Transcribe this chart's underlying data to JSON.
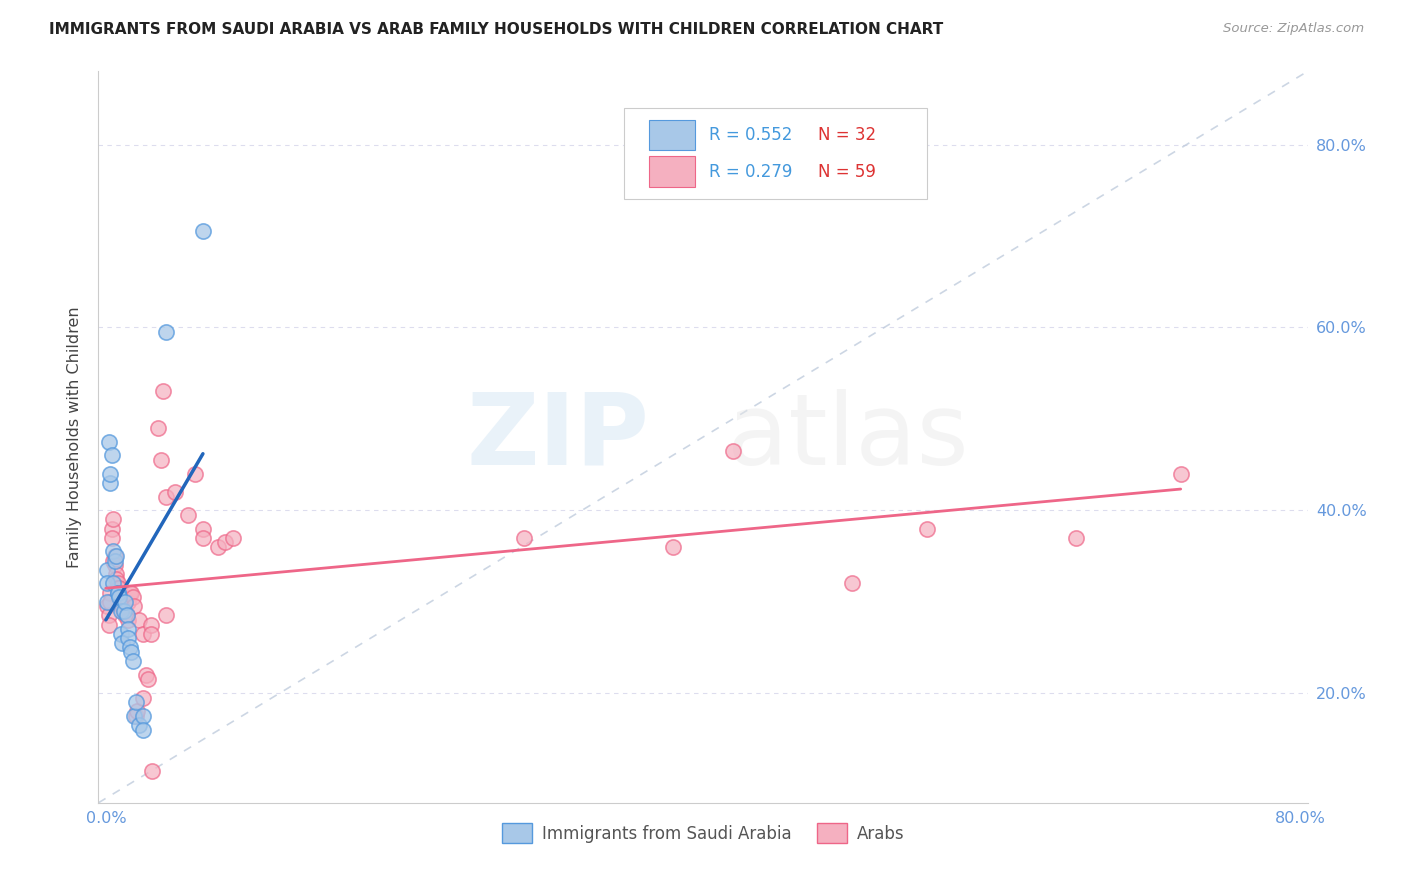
{
  "title": "IMMIGRANTS FROM SAUDI ARABIA VS ARAB FAMILY HOUSEHOLDS WITH CHILDREN CORRELATION CHART",
  "source": "Source: ZipAtlas.com",
  "ylabel": "Family Households with Children",
  "legend_r1": "R = 0.552",
  "legend_n1": "N = 32",
  "legend_r2": "R = 0.279",
  "legend_n2": "N = 59",
  "legend_label1": "Immigrants from Saudi Arabia",
  "legend_label2": "Arabs",
  "blue_fill": "#a8c8e8",
  "pink_fill": "#f5b0c0",
  "blue_edge": "#5599dd",
  "pink_edge": "#ee6688",
  "blue_line": "#2266bb",
  "pink_line": "#ee6688",
  "legend_r_color": "#4499dd",
  "legend_n_color": "#dd3333",
  "blue_scatter": [
    [
      0.001,
      0.335
    ],
    [
      0.001,
      0.32
    ],
    [
      0.001,
      0.3
    ],
    [
      0.002,
      0.475
    ],
    [
      0.003,
      0.43
    ],
    [
      0.003,
      0.44
    ],
    [
      0.004,
      0.46
    ],
    [
      0.005,
      0.355
    ],
    [
      0.005,
      0.32
    ],
    [
      0.006,
      0.345
    ],
    [
      0.007,
      0.35
    ],
    [
      0.008,
      0.31
    ],
    [
      0.008,
      0.31
    ],
    [
      0.009,
      0.305
    ],
    [
      0.01,
      0.29
    ],
    [
      0.01,
      0.265
    ],
    [
      0.011,
      0.255
    ],
    [
      0.012,
      0.29
    ],
    [
      0.013,
      0.3
    ],
    [
      0.014,
      0.285
    ],
    [
      0.015,
      0.27
    ],
    [
      0.015,
      0.26
    ],
    [
      0.016,
      0.25
    ],
    [
      0.017,
      0.245
    ],
    [
      0.018,
      0.235
    ],
    [
      0.019,
      0.175
    ],
    [
      0.02,
      0.19
    ],
    [
      0.022,
      0.165
    ],
    [
      0.025,
      0.175
    ],
    [
      0.025,
      0.16
    ],
    [
      0.04,
      0.595
    ],
    [
      0.065,
      0.705
    ]
  ],
  "pink_scatter": [
    [
      0.001,
      0.295
    ],
    [
      0.002,
      0.285
    ],
    [
      0.002,
      0.275
    ],
    [
      0.003,
      0.31
    ],
    [
      0.003,
      0.3
    ],
    [
      0.004,
      0.38
    ],
    [
      0.004,
      0.37
    ],
    [
      0.005,
      0.39
    ],
    [
      0.005,
      0.345
    ],
    [
      0.006,
      0.35
    ],
    [
      0.006,
      0.34
    ],
    [
      0.007,
      0.33
    ],
    [
      0.007,
      0.325
    ],
    [
      0.008,
      0.32
    ],
    [
      0.008,
      0.315
    ],
    [
      0.009,
      0.315
    ],
    [
      0.009,
      0.31
    ],
    [
      0.01,
      0.305
    ],
    [
      0.01,
      0.3
    ],
    [
      0.011,
      0.295
    ],
    [
      0.012,
      0.29
    ],
    [
      0.013,
      0.285
    ],
    [
      0.014,
      0.285
    ],
    [
      0.015,
      0.3
    ],
    [
      0.015,
      0.28
    ],
    [
      0.016,
      0.31
    ],
    [
      0.017,
      0.31
    ],
    [
      0.018,
      0.305
    ],
    [
      0.019,
      0.295
    ],
    [
      0.02,
      0.175
    ],
    [
      0.021,
      0.18
    ],
    [
      0.022,
      0.28
    ],
    [
      0.025,
      0.265
    ],
    [
      0.025,
      0.195
    ],
    [
      0.027,
      0.22
    ],
    [
      0.028,
      0.215
    ],
    [
      0.03,
      0.275
    ],
    [
      0.03,
      0.265
    ],
    [
      0.031,
      0.115
    ],
    [
      0.035,
      0.49
    ],
    [
      0.037,
      0.455
    ],
    [
      0.038,
      0.53
    ],
    [
      0.04,
      0.415
    ],
    [
      0.04,
      0.285
    ],
    [
      0.046,
      0.42
    ],
    [
      0.055,
      0.395
    ],
    [
      0.06,
      0.44
    ],
    [
      0.065,
      0.38
    ],
    [
      0.065,
      0.37
    ],
    [
      0.075,
      0.36
    ],
    [
      0.08,
      0.365
    ],
    [
      0.085,
      0.37
    ],
    [
      0.28,
      0.37
    ],
    [
      0.38,
      0.36
    ],
    [
      0.42,
      0.465
    ],
    [
      0.5,
      0.32
    ],
    [
      0.55,
      0.38
    ],
    [
      0.65,
      0.37
    ],
    [
      0.72,
      0.44
    ]
  ],
  "xlim": [
    -0.005,
    0.805
  ],
  "ylim": [
    0.08,
    0.88
  ],
  "yticks": [
    0.2,
    0.4,
    0.6,
    0.8
  ],
  "ytick_labels": [
    "20.0%",
    "40.0%",
    "60.0%",
    "80.0%"
  ],
  "xticks": [
    0.0,
    0.1,
    0.2,
    0.3,
    0.4,
    0.5,
    0.6,
    0.7,
    0.8
  ],
  "xtick_labels": [
    "0.0%",
    "",
    "",
    "",
    "",
    "",
    "",
    "",
    "80.0%"
  ],
  "background_color": "#ffffff",
  "grid_color": "#ddddee",
  "tick_color": "#6699dd"
}
